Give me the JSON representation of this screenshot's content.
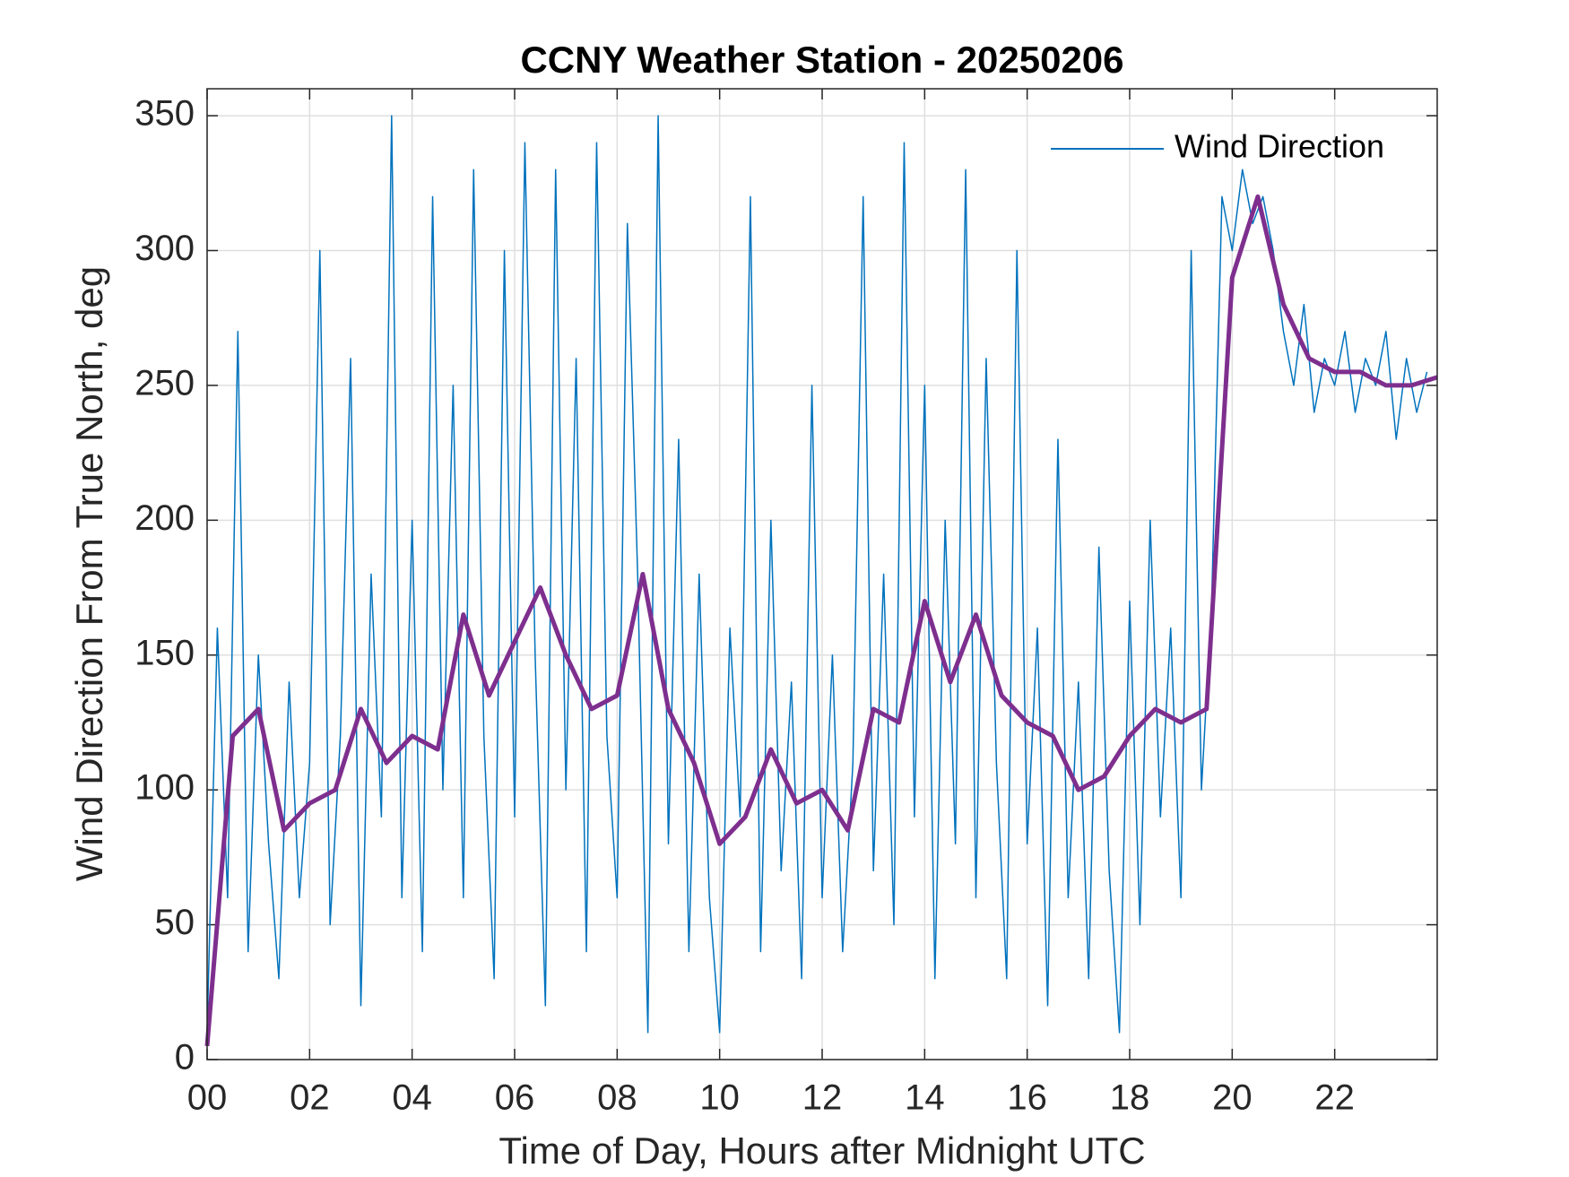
{
  "chart_data": {
    "type": "line",
    "title": "CCNY Weather Station - 20250206",
    "xlabel": "Time of Day, Hours after Midnight UTC",
    "ylabel": "Wind Direction From True North, deg",
    "xlim": [
      0,
      24
    ],
    "ylim": [
      0,
      360
    ],
    "xticks": [
      {
        "value": 0,
        "label": "00"
      },
      {
        "value": 2,
        "label": "02"
      },
      {
        "value": 4,
        "label": "04"
      },
      {
        "value": 6,
        "label": "06"
      },
      {
        "value": 8,
        "label": "08"
      },
      {
        "value": 10,
        "label": "10"
      },
      {
        "value": 12,
        "label": "12"
      },
      {
        "value": 14,
        "label": "14"
      },
      {
        "value": 16,
        "label": "16"
      },
      {
        "value": 18,
        "label": "18"
      },
      {
        "value": 20,
        "label": "20"
      },
      {
        "value": 22,
        "label": "22"
      }
    ],
    "yticks": [
      0,
      50,
      100,
      150,
      200,
      250,
      300,
      350
    ],
    "grid": true,
    "legend": "top-right",
    "series": [
      {
        "name": "Wind Direction",
        "color": "#0072BD",
        "width": 1.5,
        "x": [
          0,
          0.2,
          0.4,
          0.6,
          0.8,
          1,
          1.2,
          1.4,
          1.6,
          1.8,
          2,
          2.2,
          2.4,
          2.6,
          2.8,
          3,
          3.2,
          3.4,
          3.6,
          3.8,
          4,
          4.2,
          4.4,
          4.6,
          4.8,
          5,
          5.2,
          5.4,
          5.6,
          5.8,
          6,
          6.2,
          6.4,
          6.6,
          6.8,
          7,
          7.2,
          7.4,
          7.6,
          7.8,
          8,
          8.2,
          8.4,
          8.6,
          8.8,
          9,
          9.2,
          9.4,
          9.6,
          9.8,
          10,
          10.2,
          10.4,
          10.6,
          10.8,
          11,
          11.2,
          11.4,
          11.6,
          11.8,
          12,
          12.2,
          12.4,
          12.6,
          12.8,
          13,
          13.2,
          13.4,
          13.6,
          13.8,
          14,
          14.2,
          14.4,
          14.6,
          14.8,
          15,
          15.2,
          15.4,
          15.6,
          15.8,
          16,
          16.2,
          16.4,
          16.6,
          16.8,
          17,
          17.2,
          17.4,
          17.6,
          17.8,
          18,
          18.2,
          18.4,
          18.6,
          18.8,
          19,
          19.2,
          19.4,
          19.6,
          19.8,
          20,
          20.2,
          20.4,
          20.6,
          20.8,
          21,
          21.2,
          21.4,
          21.6,
          21.8,
          22,
          22.2,
          22.4,
          22.6,
          22.8,
          23,
          23.2,
          23.4,
          23.6,
          23.8
        ],
        "values": [
          10,
          160,
          60,
          270,
          40,
          150,
          80,
          30,
          140,
          60,
          110,
          300,
          50,
          120,
          260,
          20,
          180,
          90,
          350,
          60,
          200,
          40,
          320,
          100,
          250,
          60,
          330,
          120,
          30,
          300,
          90,
          340,
          150,
          20,
          330,
          100,
          260,
          40,
          340,
          120,
          60,
          310,
          180,
          10,
          350,
          80,
          230,
          40,
          180,
          60,
          10,
          160,
          90,
          320,
          40,
          200,
          70,
          140,
          30,
          250,
          60,
          150,
          40,
          110,
          320,
          70,
          180,
          50,
          340,
          90,
          250,
          30,
          200,
          80,
          330,
          60,
          260,
          110,
          30,
          300,
          80,
          160,
          20,
          230,
          60,
          140,
          30,
          190,
          70,
          10,
          170,
          50,
          200,
          90,
          160,
          60,
          300,
          100,
          170,
          320,
          300,
          330,
          310,
          320,
          300,
          270,
          250,
          280,
          240,
          260,
          250,
          270,
          240,
          260,
          250,
          270,
          230,
          260,
          240,
          255
        ]
      },
      {
        "color": "#7E2F8E",
        "width": 5,
        "x": [
          0,
          0.5,
          1,
          1.5,
          2,
          2.5,
          3,
          3.5,
          4,
          4.5,
          5,
          5.5,
          6,
          6.5,
          7,
          7.5,
          8,
          8.5,
          9,
          9.5,
          10,
          10.5,
          11,
          11.5,
          12,
          12.5,
          13,
          13.5,
          14,
          14.5,
          15,
          15.5,
          16,
          16.5,
          17,
          17.5,
          18,
          18.5,
          19,
          19.5,
          20,
          20.5,
          21,
          21.5,
          22,
          22.5,
          23,
          23.5,
          24
        ],
        "values": [
          5,
          120,
          130,
          85,
          95,
          100,
          130,
          110,
          120,
          115,
          165,
          135,
          155,
          175,
          150,
          130,
          135,
          180,
          130,
          110,
          80,
          90,
          115,
          95,
          100,
          85,
          130,
          125,
          170,
          140,
          165,
          135,
          125,
          120,
          100,
          105,
          120,
          130,
          125,
          130,
          290,
          320,
          280,
          260,
          255,
          255,
          250,
          250,
          253
        ]
      }
    ]
  }
}
